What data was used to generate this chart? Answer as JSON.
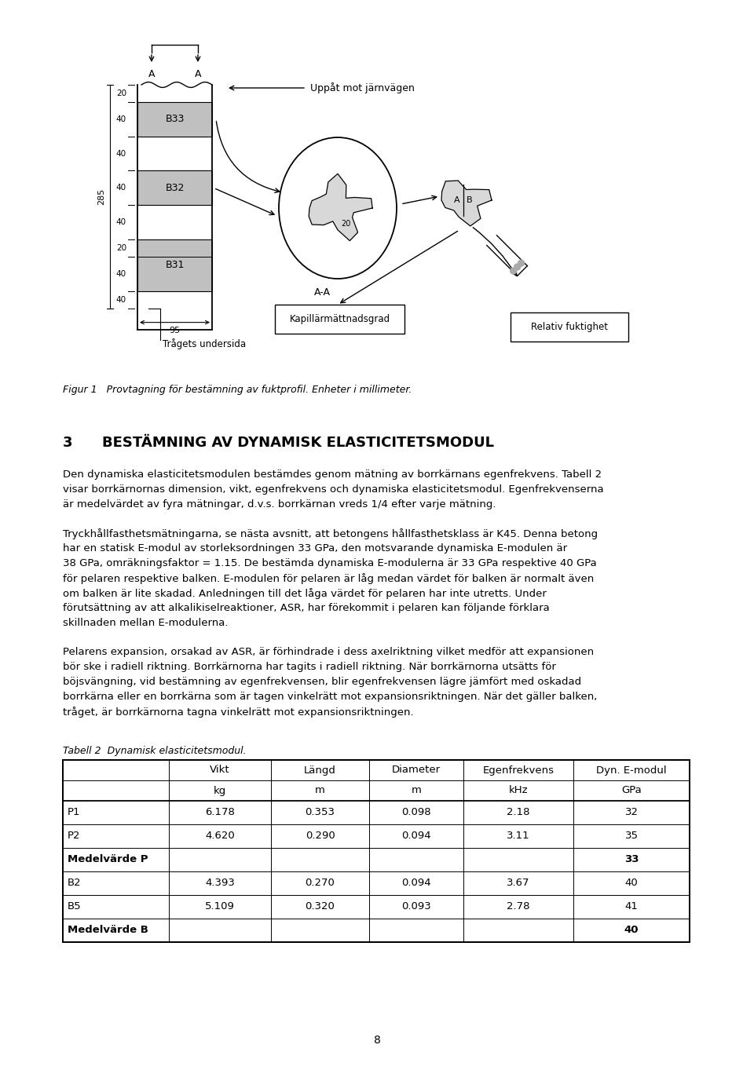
{
  "page_bg": "#ffffff",
  "fig_caption": "Figur 1   Provtagning för bestämning av fuktprofil. Enheter i millimeter.",
  "section_number": "3",
  "section_title": "BESTÄMNING AV DYNAMISK ELASTICITETSMODUL",
  "paragraph1": "Den dynamiska elasticitetsmodulen bestämdes genom mätning av borrkärnans egenfrekvens. Tabell 2\nvisar borrkärnornas dimension, vikt, egenfrekvens och dynamiska elasticitetsmodul. Egenfrekvenserna\när medelvärdet av fyra mätningar, d.v.s. borrkärnan vreds 1/4 efter varje mätning.",
  "paragraph2": "Tryckhållfasthetsmätningarna, se nästa avsnitt, att betongens hållfasthetsklass är K45. Denna betong\nhar en statisk E-modul av storleksordningen 33 GPa, den motsvarande dynamiska E-modulen är\n38 GPa, omräkningsfaktor = 1.15. De bestämda dynamiska E-modulerna är 33 GPa respektive 40 GPa\nför pelaren respektive balken. E-modulen för pelaren är låg medan värdet för balken är normalt även\nom balken är lite skadad. Anledningen till det låga värdet för pelaren har inte utretts. Under\nförutsättning av att alkalikiselreaktioner, ASR, har förekommit i pelaren kan följande förklara\nskillnaden mellan E-modulerna.",
  "paragraph3": "Pelarens expansion, orsakad av ASR, är förhindrade i dess axelriktning vilket medför att expansionen\nbör ske i radiell riktning. Borrkärnorna har tagits i radiell riktning. När borrkärnorna utsätts för\nböjsvängning, vid bestämning av egenfrekvensen, blir egenfrekvensen lägre jämfört med oskadad\nborrkärna eller en borrkärna som är tagen vinkelrätt mot expansionsriktningen. När det gäller balken,\ntråget, är borrkärnorna tagna vinkelrätt mot expansionsriktningen.",
  "table_caption": "Tabell 2  Dynamisk elasticitetsmodul.",
  "table_headers_row1": [
    "",
    "Vikt",
    "Längd",
    "Diameter",
    "Egenfrekvens",
    "Dyn. E-modul"
  ],
  "table_headers_row2": [
    "",
    "kg",
    "m",
    "m",
    "kHz",
    "GPa"
  ],
  "table_rows": [
    [
      "P1",
      "6.178",
      "0.353",
      "0.098",
      "2.18",
      "32"
    ],
    [
      "P2",
      "4.620",
      "0.290",
      "0.094",
      "3.11",
      "35"
    ],
    [
      "Medelvärde P",
      "",
      "",
      "",
      "",
      "33"
    ],
    [
      "B2",
      "4.393",
      "0.270",
      "0.094",
      "3.67",
      "40"
    ],
    [
      "B5",
      "5.109",
      "0.320",
      "0.093",
      "2.78",
      "41"
    ],
    [
      "Medelvärde B",
      "",
      "",
      "",
      "",
      "40"
    ]
  ],
  "bold_rows": [
    2,
    5
  ],
  "page_number": "8"
}
